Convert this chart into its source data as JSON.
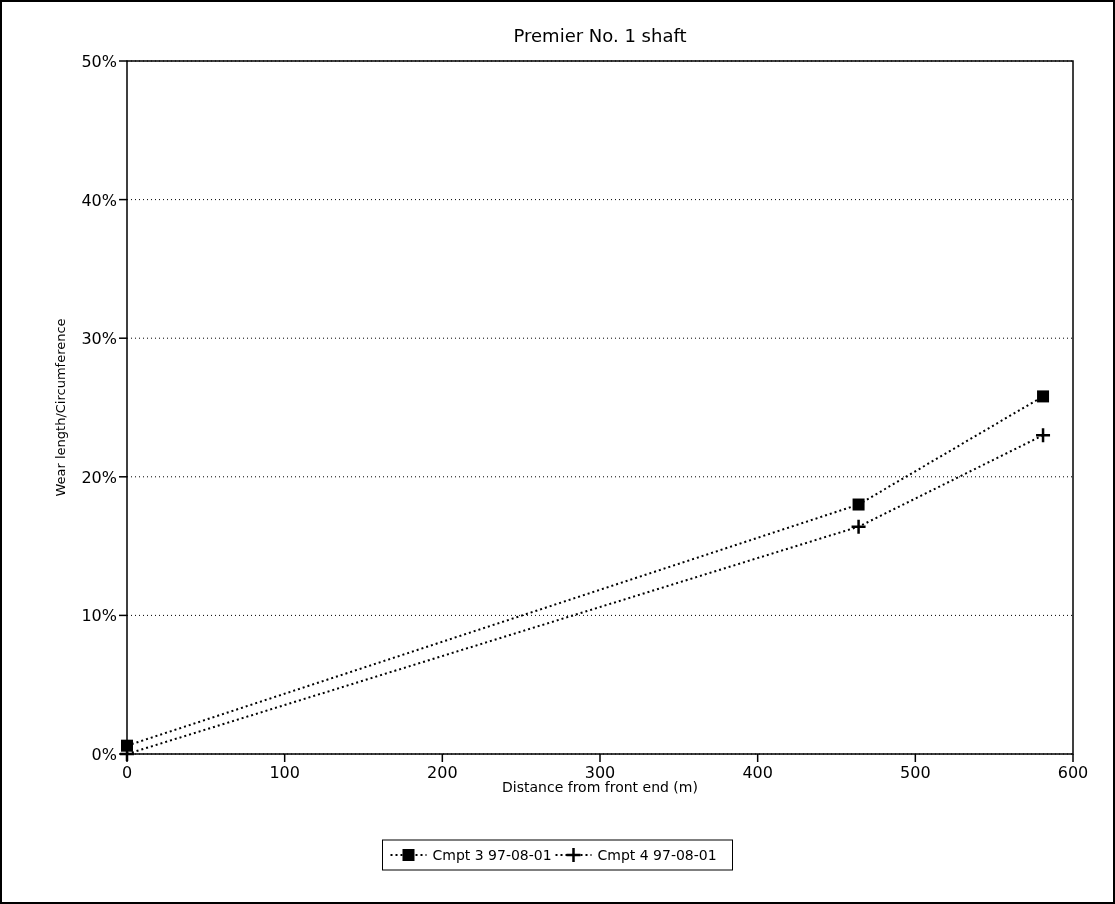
{
  "chart_data": {
    "type": "line",
    "title": "Premier No. 1 shaft",
    "xlabel": "Distance from front end (m)",
    "ylabel": "Wear length/Circumference",
    "xlim": [
      0,
      600
    ],
    "xticks": [
      0,
      100,
      200,
      300,
      400,
      500,
      600
    ],
    "ylim": [
      0,
      50
    ],
    "yticks": [
      {
        "value": 0,
        "label": "0%"
      },
      {
        "value": 10,
        "label": "10%"
      },
      {
        "value": 20,
        "label": "20%"
      },
      {
        "value": 30,
        "label": "30%"
      },
      {
        "value": 40,
        "label": "40%"
      },
      {
        "value": 50,
        "label": "50%"
      }
    ],
    "grid": "y",
    "legend": "bottom",
    "line_style": "dotted",
    "series": [
      {
        "name": "Cmpt 3 97-08-01",
        "color": "#000000",
        "marker": "square",
        "x": [
          0,
          464,
          581
        ],
        "values": [
          0.6,
          18.0,
          25.8
        ]
      },
      {
        "name": "Cmpt 4 97-08-01",
        "color": "#000000",
        "marker": "cross",
        "x": [
          0,
          464,
          581
        ],
        "values": [
          0,
          16.4,
          23.0
        ]
      }
    ]
  }
}
